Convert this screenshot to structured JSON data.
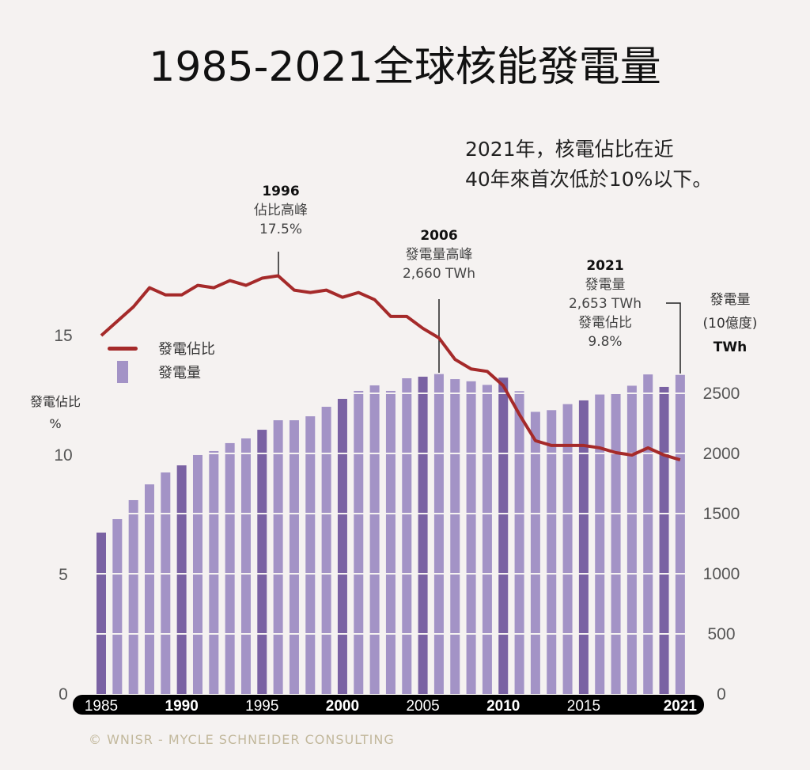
{
  "title": "1985-2021全球核能發電量",
  "note": [
    "2021年，核電佔比在近",
    "40年來首次低於10%以下。"
  ],
  "annotations": {
    "peak_share": {
      "year": "1996",
      "label": "佔比高峰",
      "value": "17.5%"
    },
    "peak_generation": {
      "year": "2006",
      "label": "發電量高峰",
      "value": "2,660 TWh"
    },
    "latest": {
      "year": "2021",
      "gen_label": "發電量",
      "gen_value": "2,653 TWh",
      "share_label": "發電佔比",
      "share_value": "9.8%"
    }
  },
  "footer": "© WNISR - MYCLE SCHNEIDER CONSULTING",
  "colors": {
    "line": "#a52a2a",
    "bar": "#a393c6",
    "bar_dark": "#7a62a3",
    "axis_band": "#000000"
  },
  "chart_data": {
    "type": "bar",
    "title": "1985-2021全球核能發電量",
    "x": [
      1985,
      1986,
      1987,
      1988,
      1989,
      1990,
      1991,
      1992,
      1993,
      1994,
      1995,
      1996,
      1997,
      1998,
      1999,
      2000,
      2001,
      2002,
      2003,
      2004,
      2005,
      2006,
      2007,
      2008,
      2009,
      2010,
      2011,
      2012,
      2013,
      2014,
      2015,
      2016,
      2017,
      2018,
      2019,
      2020,
      2021
    ],
    "x_tick_labels": [
      "1985",
      "1990",
      "1995",
      "2000",
      "2005",
      "2010",
      "2015",
      "2021"
    ],
    "series": [
      {
        "name": "發電量",
        "type": "bar",
        "axis": "right",
        "values": [
          1342,
          1454,
          1612,
          1743,
          1842,
          1901,
          1987,
          2020,
          2086,
          2125,
          2197,
          2276,
          2276,
          2309,
          2388,
          2454,
          2520,
          2566,
          2520,
          2625,
          2638,
          2660,
          2618,
          2600,
          2570,
          2630,
          2518,
          2346,
          2360,
          2410,
          2441,
          2490,
          2500,
          2563,
          2657,
          2553,
          2653
        ]
      },
      {
        "name": "發電佔比",
        "type": "line",
        "axis": "left",
        "values": [
          15.0,
          15.6,
          16.2,
          17.0,
          16.7,
          16.7,
          17.1,
          17.0,
          17.3,
          17.1,
          17.4,
          17.5,
          16.9,
          16.8,
          16.9,
          16.6,
          16.8,
          16.5,
          15.8,
          15.8,
          15.3,
          14.9,
          14.0,
          13.6,
          13.5,
          12.9,
          11.7,
          10.6,
          10.4,
          10.4,
          10.4,
          10.3,
          10.1,
          10.0,
          10.3,
          10.0,
          9.8
        ]
      }
    ],
    "left_axis": {
      "label": [
        "發電佔比",
        "%"
      ],
      "ticks": [
        "0",
        "5",
        "10",
        "15"
      ],
      "ylim": [
        0,
        17.5
      ]
    },
    "right_axis": {
      "label": [
        "發電量",
        "(10億度)",
        "TWh"
      ],
      "ticks": [
        "0",
        "500",
        "1000",
        "1500",
        "2000",
        "2500"
      ],
      "ylim": [
        0,
        2700
      ]
    },
    "legend": {
      "placement": "top-left",
      "entries": [
        "發電佔比",
        "發電量"
      ]
    },
    "grid": true
  }
}
